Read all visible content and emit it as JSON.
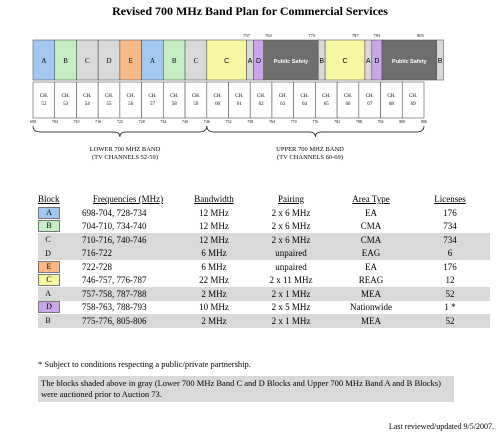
{
  "title": "Revised 700 MHz Band Plan for Commercial Services",
  "colors": {
    "A": "#a3c8f0",
    "B": "#c6edc6",
    "E": "#f6b987",
    "C": "#f7f7a3",
    "D": "#c9a7e8",
    "gray": "#d9d9d9",
    "ps": "#6e6e6e"
  },
  "band": {
    "lower_blocks": [
      {
        "label": "A",
        "color": "#a3c8f0"
      },
      {
        "label": "B",
        "color": "#c6edc6"
      },
      {
        "label": "C",
        "color": "#d9d9d9"
      },
      {
        "label": "D",
        "color": "#d9d9d9"
      },
      {
        "label": "E",
        "color": "#f6b987"
      },
      {
        "label": "A",
        "color": "#a3c8f0"
      },
      {
        "label": "B",
        "color": "#c6edc6"
      },
      {
        "label": "C",
        "color": "#d9d9d9"
      }
    ],
    "upper_blocks": [
      {
        "label": "C",
        "color": "#f7f7a3",
        "w": 35
      },
      {
        "label": "A",
        "color": "#d9d9d9",
        "w": 6
      },
      {
        "label": "D",
        "color": "#c9a7e8",
        "w": 9
      },
      {
        "label": "Public Safety",
        "color": "#6e6e6e",
        "w": 48
      },
      {
        "label": "B",
        "color": "#d9d9d9",
        "w": 6
      },
      {
        "label": "C",
        "color": "#f7f7a3",
        "w": 35
      },
      {
        "label": "A",
        "color": "#d9d9d9",
        "w": 6
      },
      {
        "label": "D",
        "color": "#c9a7e8",
        "w": 9
      },
      {
        "label": "Public Safety",
        "color": "#6e6e6e",
        "w": 48
      },
      {
        "label": "B",
        "color": "#d9d9d9",
        "w": 6
      }
    ],
    "upper_top_freqs": [
      "757",
      "763",
      "775",
      "787",
      "793",
      "805"
    ],
    "channels": [
      "52",
      "53",
      "54",
      "55",
      "56",
      "57",
      "58",
      "59",
      "60",
      "61",
      "62",
      "63",
      "64",
      "65",
      "66",
      "67",
      "68",
      "69"
    ],
    "ch_prefix": "CH.",
    "freq_ticks": [
      "698",
      "704",
      "710",
      "716",
      "722",
      "728",
      "734",
      "740",
      "746",
      "752",
      "758",
      "764",
      "770",
      "776",
      "782",
      "788",
      "794",
      "800",
      "806"
    ],
    "lower_caption": [
      "LOWER 700 MHZ BAND",
      "(TV CHANNELS 52-59)"
    ],
    "upper_caption": [
      "UPPER 700 MHZ BAND",
      "(TV CHANNELS 60-69)"
    ]
  },
  "table": {
    "headers": [
      "Block",
      "Frequencies (MHz)",
      "Bandwidth",
      "Pairing",
      "Area Type",
      "Licenses"
    ],
    "rows": [
      {
        "block": "A",
        "color": "#a3c8f0",
        "freq": "698-704, 728-734",
        "bw": "12 MHz",
        "pair": "2 x 6 MHz",
        "area": "EA",
        "lic": "176",
        "gray": false
      },
      {
        "block": "B",
        "color": "#c6edc6",
        "freq": "704-710, 734-740",
        "bw": "12 MHz",
        "pair": "2 x 6 MHz",
        "area": "CMA",
        "lic": "734",
        "gray": false
      },
      {
        "block": "C",
        "color": "",
        "freq": "710-716, 740-746",
        "bw": "12 MHz",
        "pair": "2 x 6 MHz",
        "area": "CMA",
        "lic": "734",
        "gray": true
      },
      {
        "block": "D",
        "color": "",
        "freq": "716-722",
        "bw": "6 MHz",
        "pair": "unpaired",
        "area": "EAG",
        "lic": "6",
        "gray": true
      },
      {
        "block": "E",
        "color": "#f6b987",
        "freq": "722-728",
        "bw": "6 MHz",
        "pair": "unpaired",
        "area": "EA",
        "lic": "176",
        "gray": false
      },
      {
        "block": "C",
        "color": "#f7f7a3",
        "freq": "746-757, 776-787",
        "bw": "22 MHz",
        "pair": "2 x 11 MHz",
        "area": "REAG",
        "lic": "12",
        "gray": false
      },
      {
        "block": "A",
        "color": "",
        "freq": "757-758, 787-788",
        "bw": "2 MHz",
        "pair": "2 x 1 MHz",
        "area": "MEA",
        "lic": "52",
        "gray": true
      },
      {
        "block": "D",
        "color": "#c9a7e8",
        "freq": "758-763, 788-793",
        "bw": "10 MHz",
        "pair": "2 x 5 MHz",
        "area": "Nationwide",
        "lic": "1 *",
        "gray": false
      },
      {
        "block": "B",
        "color": "",
        "freq": "775-776, 805-806",
        "bw": "2 MHz",
        "pair": "2 x 1 MHz",
        "area": "MEA",
        "lic": "52",
        "gray": true
      }
    ]
  },
  "note": "* Subject to conditions respecting a public/private partnership.",
  "gray_note": "The blocks shaded above in gray (Lower 700 MHz Band C and D Blocks and Upper 700 MHz Band A and B Blocks) were auctioned prior to Auction 73.",
  "footer": "Last reviewed/updated 9/5/2007."
}
